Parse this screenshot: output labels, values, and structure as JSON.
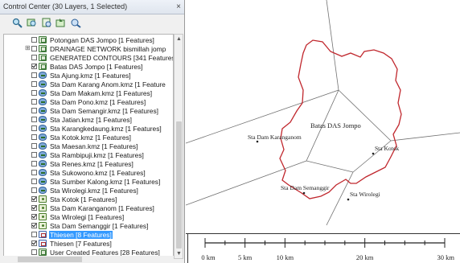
{
  "panel": {
    "title": "Control Center (30 Layers, 1 Selected)",
    "close_glyph": "×",
    "toolbar_icons": [
      "zoom-layer-icon",
      "zoom-selected-icon",
      "layer-options-icon",
      "add-layer-icon",
      "remove-layer-icon"
    ]
  },
  "layers": [
    {
      "label": "Potongan DAS Jompo [1 Features]",
      "checked": false,
      "icon": "vector-layer-icon",
      "expander": ""
    },
    {
      "label": "DRAINAGE NETWORK bismillah jomp",
      "checked": false,
      "icon": "vector-layer-icon",
      "expander": "⊞"
    },
    {
      "label": "GENERATED CONTOURS [341 Features",
      "checked": false,
      "icon": "vector-layer-icon",
      "expander": ""
    },
    {
      "label": "Batas DAS Jompo [1 Features]",
      "checked": true,
      "icon": "vector-layer-icon",
      "expander": ""
    },
    {
      "label": "Sta Ajung.kmz [1 Features]",
      "checked": false,
      "icon": "kmz-layer-icon",
      "expander": ""
    },
    {
      "label": "Sta Dam Karang Anom.kmz [1 Feature",
      "checked": false,
      "icon": "kmz-layer-icon",
      "expander": ""
    },
    {
      "label": "Sta Dam Makam.kmz [1 Features]",
      "checked": false,
      "icon": "kmz-layer-icon",
      "expander": ""
    },
    {
      "label": "Sta Dam Pono.kmz [1 Features]",
      "checked": false,
      "icon": "kmz-layer-icon",
      "expander": ""
    },
    {
      "label": "Sta Dam Semangir.kmz [1 Features]",
      "checked": false,
      "icon": "kmz-layer-icon",
      "expander": ""
    },
    {
      "label": "Sta Jatian.kmz [1 Features]",
      "checked": false,
      "icon": "kmz-layer-icon",
      "expander": ""
    },
    {
      "label": "Sta Karangkedaung.kmz [1 Features]",
      "checked": false,
      "icon": "kmz-layer-icon",
      "expander": ""
    },
    {
      "label": "Sta Kotok.kmz [1 Features]",
      "checked": false,
      "icon": "kmz-layer-icon",
      "expander": ""
    },
    {
      "label": "Sta Maesan.kmz [1 Features]",
      "checked": false,
      "icon": "kmz-layer-icon",
      "expander": ""
    },
    {
      "label": "Sta Rambipuji.kmz [1 Features]",
      "checked": false,
      "icon": "kmz-layer-icon",
      "expander": ""
    },
    {
      "label": "Sta Renes.kmz [1 Features]",
      "checked": false,
      "icon": "kmz-layer-icon",
      "expander": ""
    },
    {
      "label": "Sta Sukowono.kmz [1 Features]",
      "checked": false,
      "icon": "kmz-layer-icon",
      "expander": ""
    },
    {
      "label": "Sta Sumber Kalong.kmz [1 Features]",
      "checked": false,
      "icon": "kmz-layer-icon",
      "expander": ""
    },
    {
      "label": "Sta Wirolegi.kmz [1 Features]",
      "checked": false,
      "icon": "kmz-layer-icon",
      "expander": ""
    },
    {
      "label": "Sta Kotok [1 Features]",
      "checked": true,
      "icon": "point-layer-icon",
      "expander": ""
    },
    {
      "label": "Sta Dam Karanganom [1 Features]",
      "checked": true,
      "icon": "point-layer-icon",
      "expander": ""
    },
    {
      "label": "Sta Wirolegi [1 Features]",
      "checked": true,
      "icon": "point-layer-icon",
      "expander": ""
    },
    {
      "label": "Sta Dam Semanggir [1 Features]",
      "checked": true,
      "icon": "point-layer-icon",
      "expander": ""
    },
    {
      "label": "Thiesen [8 Features]",
      "checked": false,
      "icon": "polygon-layer-icon",
      "expander": "",
      "selected": true
    },
    {
      "label": "Thiesen [7 Features]",
      "checked": true,
      "icon": "polygon-layer-icon",
      "expander": ""
    },
    {
      "label": "User Created Features [28 Features]",
      "checked": false,
      "icon": "vector-layer-icon",
      "expander": ""
    }
  ],
  "map": {
    "area_label": "Batas DAS Jompo",
    "stations": {
      "karanganom": "Sta Dam Karanganom",
      "kotok": "Sta Kotok",
      "semanggir": "Sta Dam Semanggir",
      "wirolegi": "Sta Wirolegi"
    },
    "boundary_color": "#c0272d",
    "scalebar": {
      "labels": [
        "0 km",
        "5 km",
        "10 km",
        "20 km",
        "30 km"
      ],
      "values": [
        0,
        5,
        10,
        20,
        30
      ]
    }
  }
}
